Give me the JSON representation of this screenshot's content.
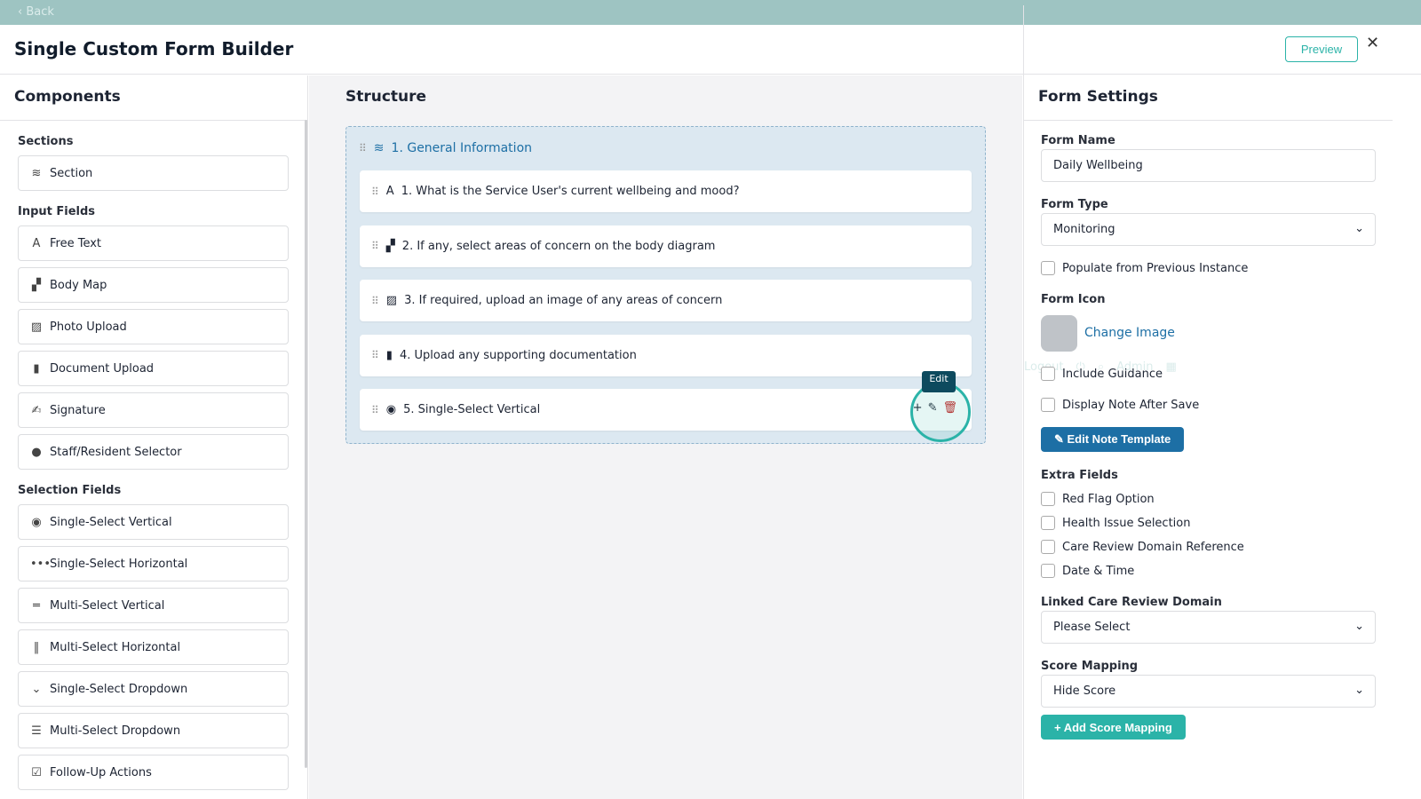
{
  "topbar": {
    "back": "‹ Back",
    "logout": "Logout",
    "admin": "Admin"
  },
  "header": {
    "title": "Single Custom Form Builder",
    "preview": "Preview",
    "close": "✕"
  },
  "components": {
    "title": "Components",
    "groups": [
      {
        "label": "Sections",
        "items": [
          {
            "label": "Section",
            "icon": "≋"
          }
        ]
      },
      {
        "label": "Input Fields",
        "items": [
          {
            "label": "Free Text",
            "icon": "A"
          },
          {
            "label": "Body Map",
            "icon": "▞"
          },
          {
            "label": "Photo Upload",
            "icon": "▨"
          },
          {
            "label": "Document Upload",
            "icon": "▮"
          },
          {
            "label": "Signature",
            "icon": "✍"
          },
          {
            "label": "Staff/Resident Selector",
            "icon": "●"
          }
        ]
      },
      {
        "label": "Selection Fields",
        "items": [
          {
            "label": "Single-Select Vertical",
            "icon": "◉"
          },
          {
            "label": "Single-Select Horizontal",
            "icon": "•••"
          },
          {
            "label": "Multi-Select Vertical",
            "icon": "═"
          },
          {
            "label": "Multi-Select Horizontal",
            "icon": "‖"
          },
          {
            "label": "Single-Select Dropdown",
            "icon": "⌄"
          },
          {
            "label": "Multi-Select Dropdown",
            "icon": "☰"
          },
          {
            "label": "Follow-Up Actions",
            "icon": "☑"
          }
        ]
      }
    ]
  },
  "structure": {
    "title": "Structure",
    "section": "1. General Information",
    "tooltip": "Edit",
    "questions": [
      {
        "label": "1. What is the Service User's current wellbeing and mood?",
        "icon": "A"
      },
      {
        "label": "2. If any, select areas of concern on the body diagram",
        "icon": "▞"
      },
      {
        "label": "3. If required, upload an image of any areas of concern",
        "icon": "▨"
      },
      {
        "label": "4. Upload any supporting documentation",
        "icon": "▮"
      },
      {
        "label": "5. Single-Select Vertical",
        "icon": "◉"
      }
    ]
  },
  "settings": {
    "title": "Form Settings",
    "form_name_label": "Form Name",
    "form_name": "Daily Wellbeing",
    "form_type_label": "Form Type",
    "form_type": "Monitoring",
    "populate": "Populate from Previous Instance",
    "icon_label": "Form Icon",
    "change_image": "Change Image",
    "include_guidance": "Include Guidance",
    "display_note": "Display Note After Save",
    "edit_note": "Edit Note Template",
    "extra_label": "Extra Fields",
    "extras": [
      "Red Flag Option",
      "Health Issue Selection",
      "Care Review Domain Reference",
      "Date & Time"
    ],
    "linked_label": "Linked Care Review Domain",
    "linked": "Please Select",
    "score_label": "Score Mapping",
    "score": "Hide Score",
    "add_score": "+  Add Score Mapping"
  },
  "colors": {
    "teal": "#2bb3a8",
    "blue": "#1d6fa5",
    "topbar": "#9ec4c2",
    "danger": "#c62828"
  }
}
